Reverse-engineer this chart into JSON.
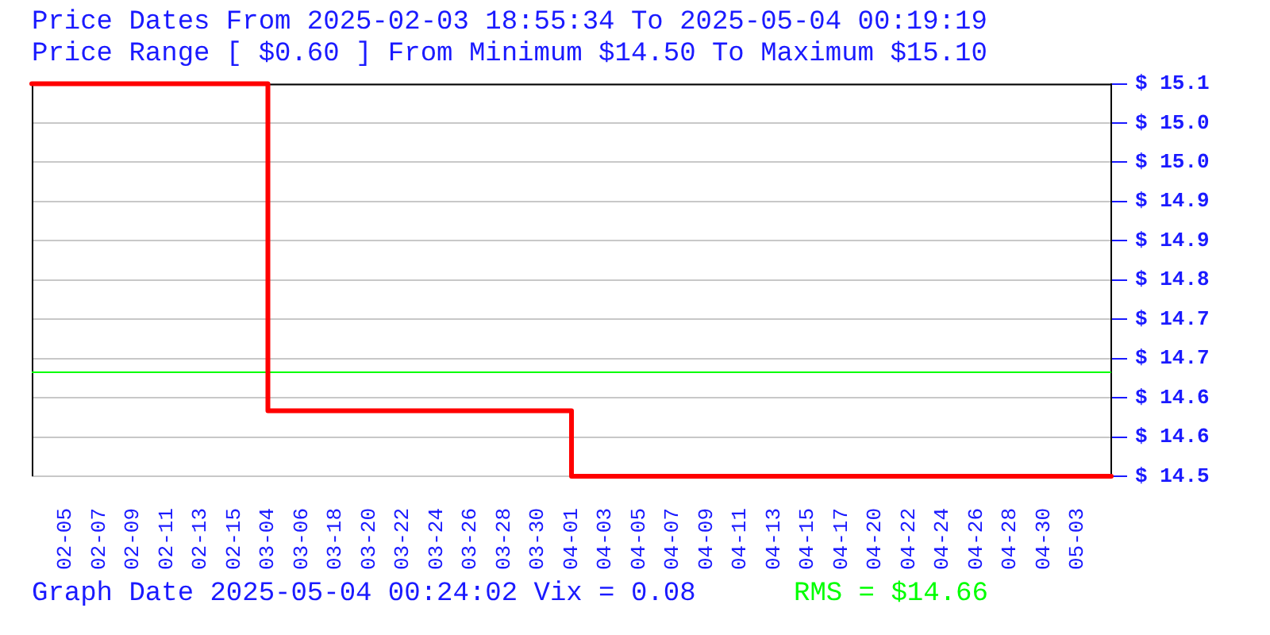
{
  "chart_data": {
    "type": "step",
    "title": "Price Dates From 2025-02-03 18:55:34 To 2025-05-04 00:19:19",
    "subtitle": "Price Range [ $0.60 ] From Minimum $14.50 To Maximum $15.10",
    "categories": [
      null,
      "02-05",
      "02-07",
      "02-09",
      "02-11",
      "02-13",
      "02-15",
      "03-04",
      "03-06",
      "03-18",
      "03-20",
      "03-22",
      "03-24",
      "03-26",
      "03-28",
      "03-30",
      "04-01",
      "04-03",
      "04-05",
      "04-07",
      "04-09",
      "04-11",
      "04-13",
      "04-15",
      "04-17",
      "04-20",
      "04-22",
      "04-24",
      "04-26",
      "04-28",
      "04-30",
      "05-03",
      null
    ],
    "values": [
      15.1,
      15.1,
      15.1,
      15.1,
      15.1,
      15.1,
      15.1,
      14.6,
      14.6,
      14.6,
      14.6,
      14.6,
      14.6,
      14.6,
      14.6,
      14.6,
      14.5,
      14.5,
      14.5,
      14.5,
      14.5,
      14.5,
      14.5,
      14.5,
      14.5,
      14.5,
      14.5,
      14.5,
      14.5,
      14.5,
      14.5,
      14.5,
      14.5
    ],
    "color": "#ff0000",
    "marker": "none",
    "ylim": [
      14.5,
      15.1
    ],
    "yticks": [
      {
        "value": 14.5,
        "label": "$ 14.5"
      },
      {
        "value": 14.56,
        "label": "$ 14.6"
      },
      {
        "value": 14.62,
        "label": "$ 14.6"
      },
      {
        "value": 14.68,
        "label": "$ 14.7"
      },
      {
        "value": 14.74,
        "label": "$ 14.7"
      },
      {
        "value": 14.8,
        "label": "$ 14.8"
      },
      {
        "value": 14.86,
        "label": "$ 14.9"
      },
      {
        "value": 14.92,
        "label": "$ 14.9"
      },
      {
        "value": 14.98,
        "label": "$ 15.0"
      },
      {
        "value": 15.04,
        "label": "$ 15.0"
      },
      {
        "value": 15.1,
        "label": "$ 15.1"
      }
    ],
    "grid": "y",
    "ref_lines": [
      {
        "axis": "y",
        "value": 14.66,
        "label": "RMS = $14.66",
        "color": "#00ff00"
      }
    ],
    "annotations": [
      "Graph Date 2025-05-04 00:24:02 Vix = 0.08"
    ]
  }
}
